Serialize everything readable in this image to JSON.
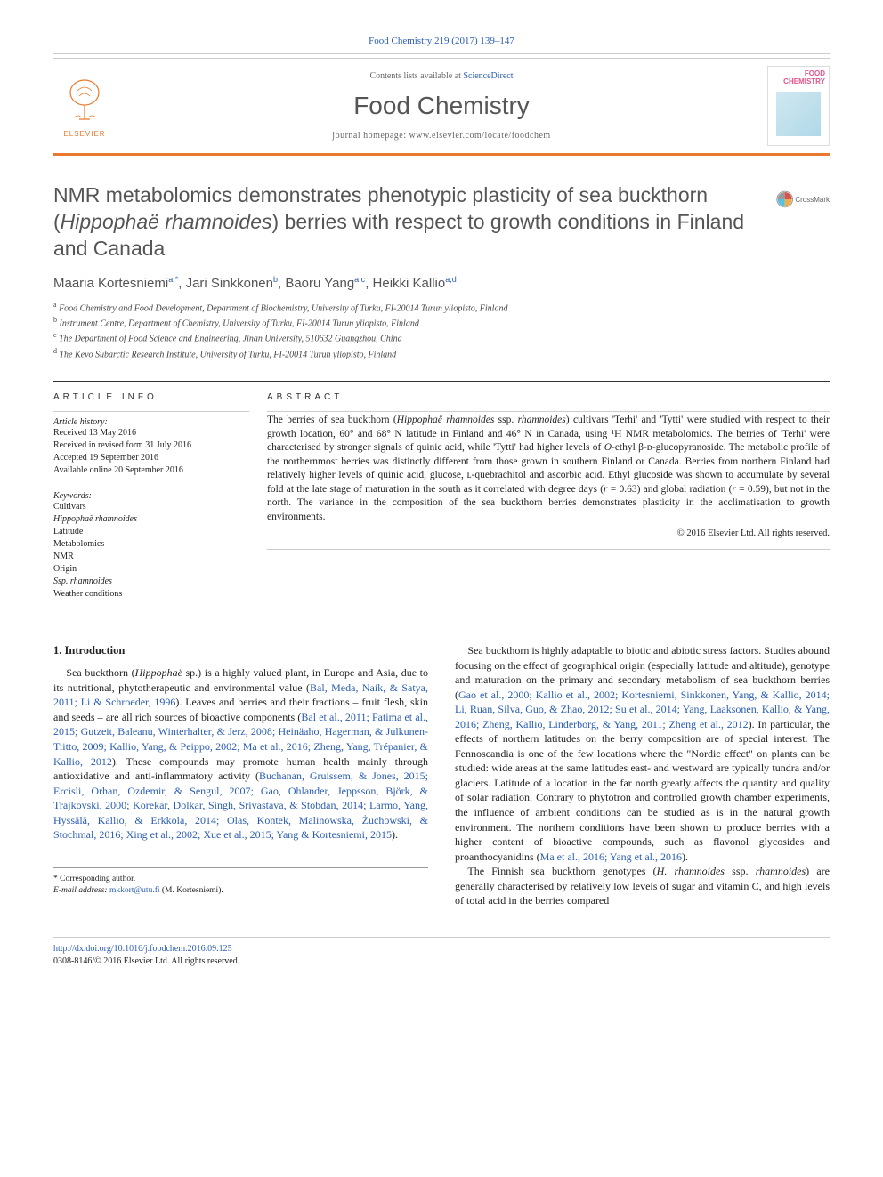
{
  "journal_ref": {
    "text": "Food Chemistry 219 (2017) 139–147",
    "link_color": "#2a5db0"
  },
  "masthead": {
    "contents_prefix": "Contents lists available at ",
    "contents_link": "ScienceDirect",
    "journal_name": "Food Chemistry",
    "homepage_prefix": "journal homepage: ",
    "homepage_url": "www.elsevier.com/locate/foodchem",
    "elsevier_label": "ELSEVIER",
    "cover_title_l1": "FOOD",
    "cover_title_l2": "CHEMISTRY"
  },
  "colors": {
    "orange": "#e8792e",
    "link": "#2a5db0",
    "text": "#222222",
    "heading_gray": "#555555",
    "rule_light": "#cccccc",
    "pink": "#e8518a"
  },
  "typography": {
    "body_font": "Georgia, 'Times New Roman', serif",
    "sans_font": "Arial, sans-serif",
    "title_pt": 23,
    "body_pt": 12,
    "abstract_pt": 11.5,
    "small_pt": 10
  },
  "crossmark_label": "CrossMark",
  "title": {
    "pre": "NMR metabolomics demonstrates phenotypic plasticity of sea buckthorn (",
    "latin": "Hippophaë rhamnoides",
    "post": ") berries with respect to growth conditions in Finland and Canada"
  },
  "authors": [
    {
      "name": "Maaria Kortesniemi",
      "sup": "a,*"
    },
    {
      "name": "Jari Sinkkonen",
      "sup": "b"
    },
    {
      "name": "Baoru Yang",
      "sup": "a,c"
    },
    {
      "name": "Heikki Kallio",
      "sup": "a,d"
    }
  ],
  "authors_sep": ", ",
  "affiliations": [
    {
      "sup": "a",
      "text": "Food Chemistry and Food Development, Department of Biochemistry, University of Turku, FI-20014 Turun yliopisto, Finland"
    },
    {
      "sup": "b",
      "text": "Instrument Centre, Department of Chemistry, University of Turku, FI-20014 Turun yliopisto, Finland"
    },
    {
      "sup": "c",
      "text": "The Department of Food Science and Engineering, Jinan University, 510632 Guangzhou, China"
    },
    {
      "sup": "d",
      "text": "The Kevo Subarctic Research Institute, University of Turku, FI-20014 Turun yliopisto, Finland"
    }
  ],
  "article_info_label": "ARTICLE INFO",
  "abstract_label": "ABSTRACT",
  "history": {
    "label": "Article history:",
    "lines": [
      "Received 13 May 2016",
      "Received in revised form 31 July 2016",
      "Accepted 19 September 2016",
      "Available online 20 September 2016"
    ]
  },
  "keywords": {
    "label": "Keywords:",
    "items": [
      {
        "text": "Cultivars",
        "latin": false
      },
      {
        "text": "Hippophaë rhamnoides",
        "latin": true
      },
      {
        "text": "Latitude",
        "latin": false
      },
      {
        "text": "Metabolomics",
        "latin": false
      },
      {
        "text": "NMR",
        "latin": false
      },
      {
        "text": "Origin",
        "latin": false
      },
      {
        "text": "Ssp. rhamnoides",
        "latin": true
      },
      {
        "text": "Weather conditions",
        "latin": false
      }
    ]
  },
  "abstract": {
    "p1a": "The berries of sea buckthorn (",
    "p1_latin1": "Hippophaë rhamnoides",
    "p1b": " ssp. ",
    "p1_latin2": "rhamnoides",
    "p1c": ") cultivars 'Terhi' and 'Tytti' were studied with respect to their growth location, 60° and 68° N latitude in Finland and 46° N in Canada, using ¹H NMR metabolomics. The berries of 'Terhi' were characterised by stronger signals of quinic acid, while 'Tytti' had higher levels of ",
    "p1_latin3": "O",
    "p1d": "-ethyl β-ᴅ-glucopyranoside. The metabolic profile of the northernmost berries was distinctly different from those grown in southern Finland or Canada. Berries from northern Finland had relatively higher levels of quinic acid, glucose, ʟ-quebrachitol and ascorbic acid. Ethyl glucoside was shown to accumulate by several fold at the late stage of maturation in the south as it correlated with degree days (",
    "p1_r1": "r",
    "p1e": " = 0.63) and global radiation (",
    "p1_r2": "r",
    "p1f": " = 0.59), but not in the north. The variance in the composition of the sea buckthorn berries demonstrates plasticity in the acclimatisation to growth environments.",
    "copyright": "© 2016 Elsevier Ltd. All rights reserved."
  },
  "intro": {
    "heading": "1. Introduction",
    "p1_a": "Sea buckthorn (",
    "p1_latin": "Hippophaë",
    "p1_b": " sp.) is a highly valued plant, in Europe and Asia, due to its nutritional, phytotherapeutic and environmental value (",
    "p1_cite1": "Bal, Meda, Naik, & Satya, 2011; Li & Schroeder, 1996",
    "p1_c": "). Leaves and berries and their fractions – fruit flesh, skin and seeds – are all rich sources of bioactive components (",
    "p1_cite2": "Bal et al., 2011; Fatima et al., 2015; Gutzeit, Baleanu, Winterhalter, & Jerz, 2008; Heinäaho, Hagerman, & Julkunen-Tiitto, 2009; Kallio, Yang, & Peippo, 2002; Ma et al., 2016; Zheng, Yang, Trépanier, & Kallio, 2012",
    "p1_d": "). These compounds may promote human health mainly through antioxidative and anti-inflammatory activity (",
    "p1_cite3": "Buchanan, Gruissem, & Jones, 2015; Ercisli, Orhan, Ozdemir, & Sengul, 2007; Gao, Ohlander, Jeppsson, Björk, & Trajkovski, 2000; Korekar, Dolkar, Singh, Srivastava, & Stobdan, 2014; Larmo, Yang, Hyssälä, Kallio, & Erkkola, 2014; Olas, Kontek, Malinowska, Żuchowski, & Stochmal, 2016; Xing et al., 2002; Xue et al., 2015; Yang & Kortesniemi, 2015",
    "p1_e": ").",
    "p2_a": "Sea buckthorn is highly adaptable to biotic and abiotic stress factors. Studies abound focusing on the effect of geographical origin (especially latitude and altitude), genotype and maturation on the primary and secondary metabolism of sea buckthorn berries (",
    "p2_cite1": "Gao et al., 2000; Kallio et al., 2002; Kortesniemi, Sinkkonen, Yang, & Kallio, 2014; Li, Ruan, Silva, Guo, & Zhao, 2012; Su et al., 2014; Yang, Laaksonen, Kallio, & Yang, 2016; Zheng, Kallio, Linderborg, & Yang, 2011; Zheng et al., 2012",
    "p2_b": "). In particular, the effects of northern latitudes on the berry composition are of special interest. The Fennoscandia is one of the few locations where the \"Nordic effect\" on plants can be studied: wide areas at the same latitudes east- and westward are typically tundra and/or glaciers. Latitude of a location in the far north greatly affects the quantity and quality of solar radiation. Contrary to phytotron and controlled growth chamber experiments, the influence of ambient conditions can be studied as is in the natural growth environment. The northern conditions have been shown to produce berries with a higher content of bioactive compounds, such as flavonol glycosides and proanthocyanidins (",
    "p2_cite2": "Ma et al., 2016; Yang et al., 2016",
    "p2_c": ").",
    "p3_a": "The Finnish sea buckthorn genotypes (",
    "p3_latin1": "H. rhamnoides",
    "p3_b": " ssp. ",
    "p3_latin2": "rhamnoides",
    "p3_c": ") are generally characterised by relatively low levels of sugar and vitamin C, and high levels of total acid in the berries compared"
  },
  "corresponding": {
    "star": "*",
    "label": "Corresponding author.",
    "email_label": "E-mail address:",
    "email": "mkkort@utu.fi",
    "email_who": "(M. Kortesniemi)."
  },
  "footer": {
    "doi": "http://dx.doi.org/10.1016/j.foodchem.2016.09.125",
    "issn_line": "0308-8146/© 2016 Elsevier Ltd. All rights reserved."
  }
}
